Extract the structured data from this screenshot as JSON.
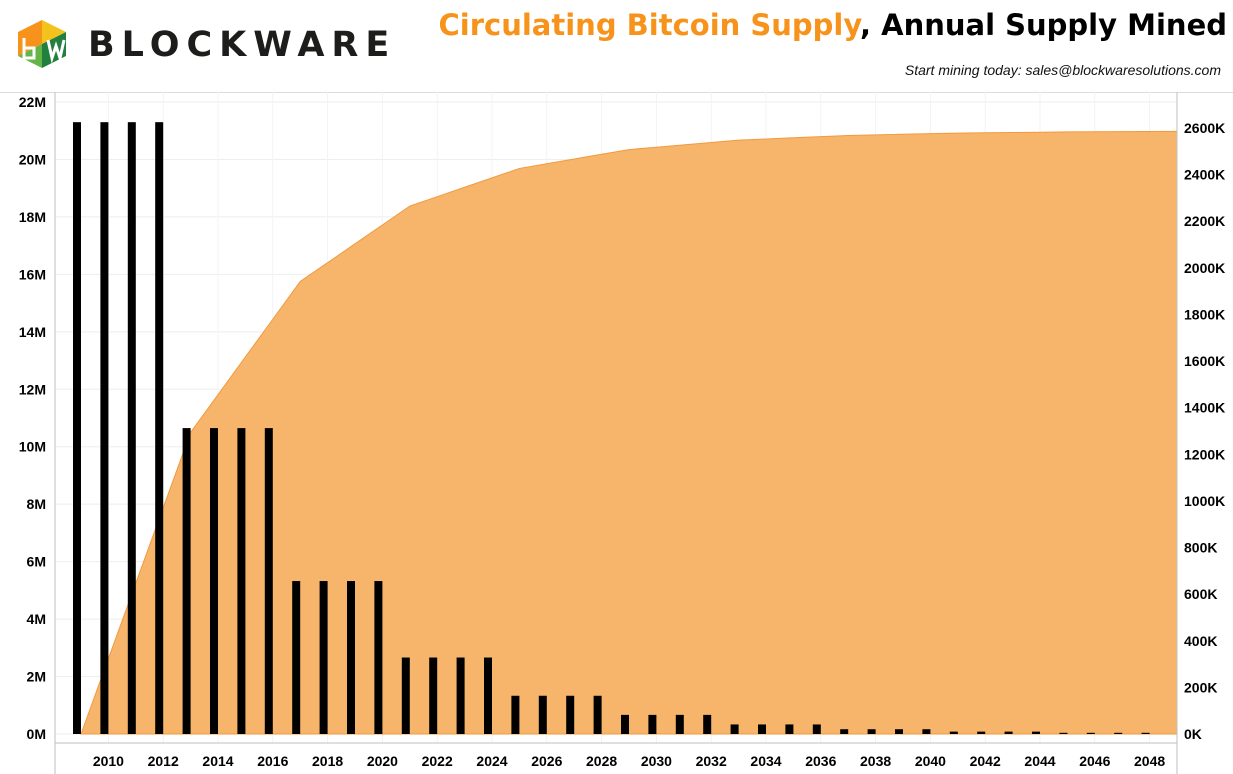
{
  "header": {
    "brand": "BLOCKWARE",
    "title_highlight": "Circulating Bitcoin Supply",
    "title_rest": ", Annual Supply Mined",
    "subtitle": "Start mining today: sales@blockwaresolutions.com"
  },
  "colors": {
    "supply_area": "#f7b56c",
    "supply_line": "#f19a3e",
    "bars": "#000000",
    "title_highlight": "#f7931a",
    "logo": [
      "#f7931a",
      "#f4c21d",
      "#64b448",
      "#22803f"
    ]
  },
  "chart_data": {
    "type": "bar+area",
    "title": "Circulating Bitcoin Supply, Annual Supply Mined",
    "x_tick_labels": [
      "2010",
      "2012",
      "2014",
      "2016",
      "2018",
      "2020",
      "2022",
      "2024",
      "2026",
      "2028",
      "2030",
      "2032",
      "2034",
      "2036",
      "2038",
      "2040",
      "2042",
      "2044",
      "2046",
      "2048"
    ],
    "left_axis": {
      "ticks": [
        "0M",
        "2M",
        "4M",
        "6M",
        "8M",
        "10M",
        "12M",
        "14M",
        "16M",
        "18M",
        "20M",
        "22M"
      ],
      "ylim": [
        0,
        22000000
      ]
    },
    "right_axis": {
      "ticks": [
        "0K",
        "200K",
        "400K",
        "600K",
        "800K",
        "1000K",
        "1200K",
        "1400K",
        "1600K",
        "1800K",
        "2000K",
        "2200K",
        "2400K",
        "2600K"
      ],
      "ylim": [
        0,
        2600000
      ]
    },
    "grid": true,
    "years": [
      2009,
      2010,
      2011,
      2012,
      2013,
      2014,
      2015,
      2016,
      2017,
      2018,
      2019,
      2020,
      2021,
      2022,
      2023,
      2024,
      2025,
      2026,
      2027,
      2028,
      2029,
      2030,
      2031,
      2032,
      2033,
      2034,
      2035,
      2036,
      2037,
      2038,
      2039,
      2040,
      2041,
      2042,
      2043,
      2044,
      2045,
      2046,
      2047,
      2048,
      2049
    ],
    "series": [
      {
        "name": "Circulating Bitcoin Supply",
        "type": "area",
        "axis": "left",
        "values": [
          0,
          2625000,
          5250000,
          7875000,
          10500000,
          11812500,
          13125000,
          14437500,
          15750000,
          16406250,
          17062500,
          17718750,
          18375000,
          18703125,
          19031250,
          19359375,
          19687500,
          19851563,
          20015625,
          20179688,
          20343750,
          20425781,
          20507813,
          20589844,
          20671875,
          20712891,
          20753906,
          20794922,
          20835938,
          20856445,
          20876953,
          20897461,
          20917969,
          20928223,
          20938477,
          20948730,
          20958984,
          20964111,
          20969238,
          20974365,
          20979492
        ]
      },
      {
        "name": "Annual Supply Mined",
        "type": "bar",
        "axis": "right",
        "values": [
          2625000,
          2625000,
          2625000,
          2625000,
          1312500,
          1312500,
          1312500,
          1312500,
          656250,
          656250,
          656250,
          656250,
          328125,
          328125,
          328125,
          328125,
          164063,
          164063,
          164063,
          164063,
          82031,
          82031,
          82031,
          82031,
          41016,
          41016,
          41016,
          41016,
          20508,
          20508,
          20508,
          20508,
          10254,
          10254,
          10254,
          10254,
          5127,
          5127,
          5127,
          5127
        ]
      }
    ]
  }
}
